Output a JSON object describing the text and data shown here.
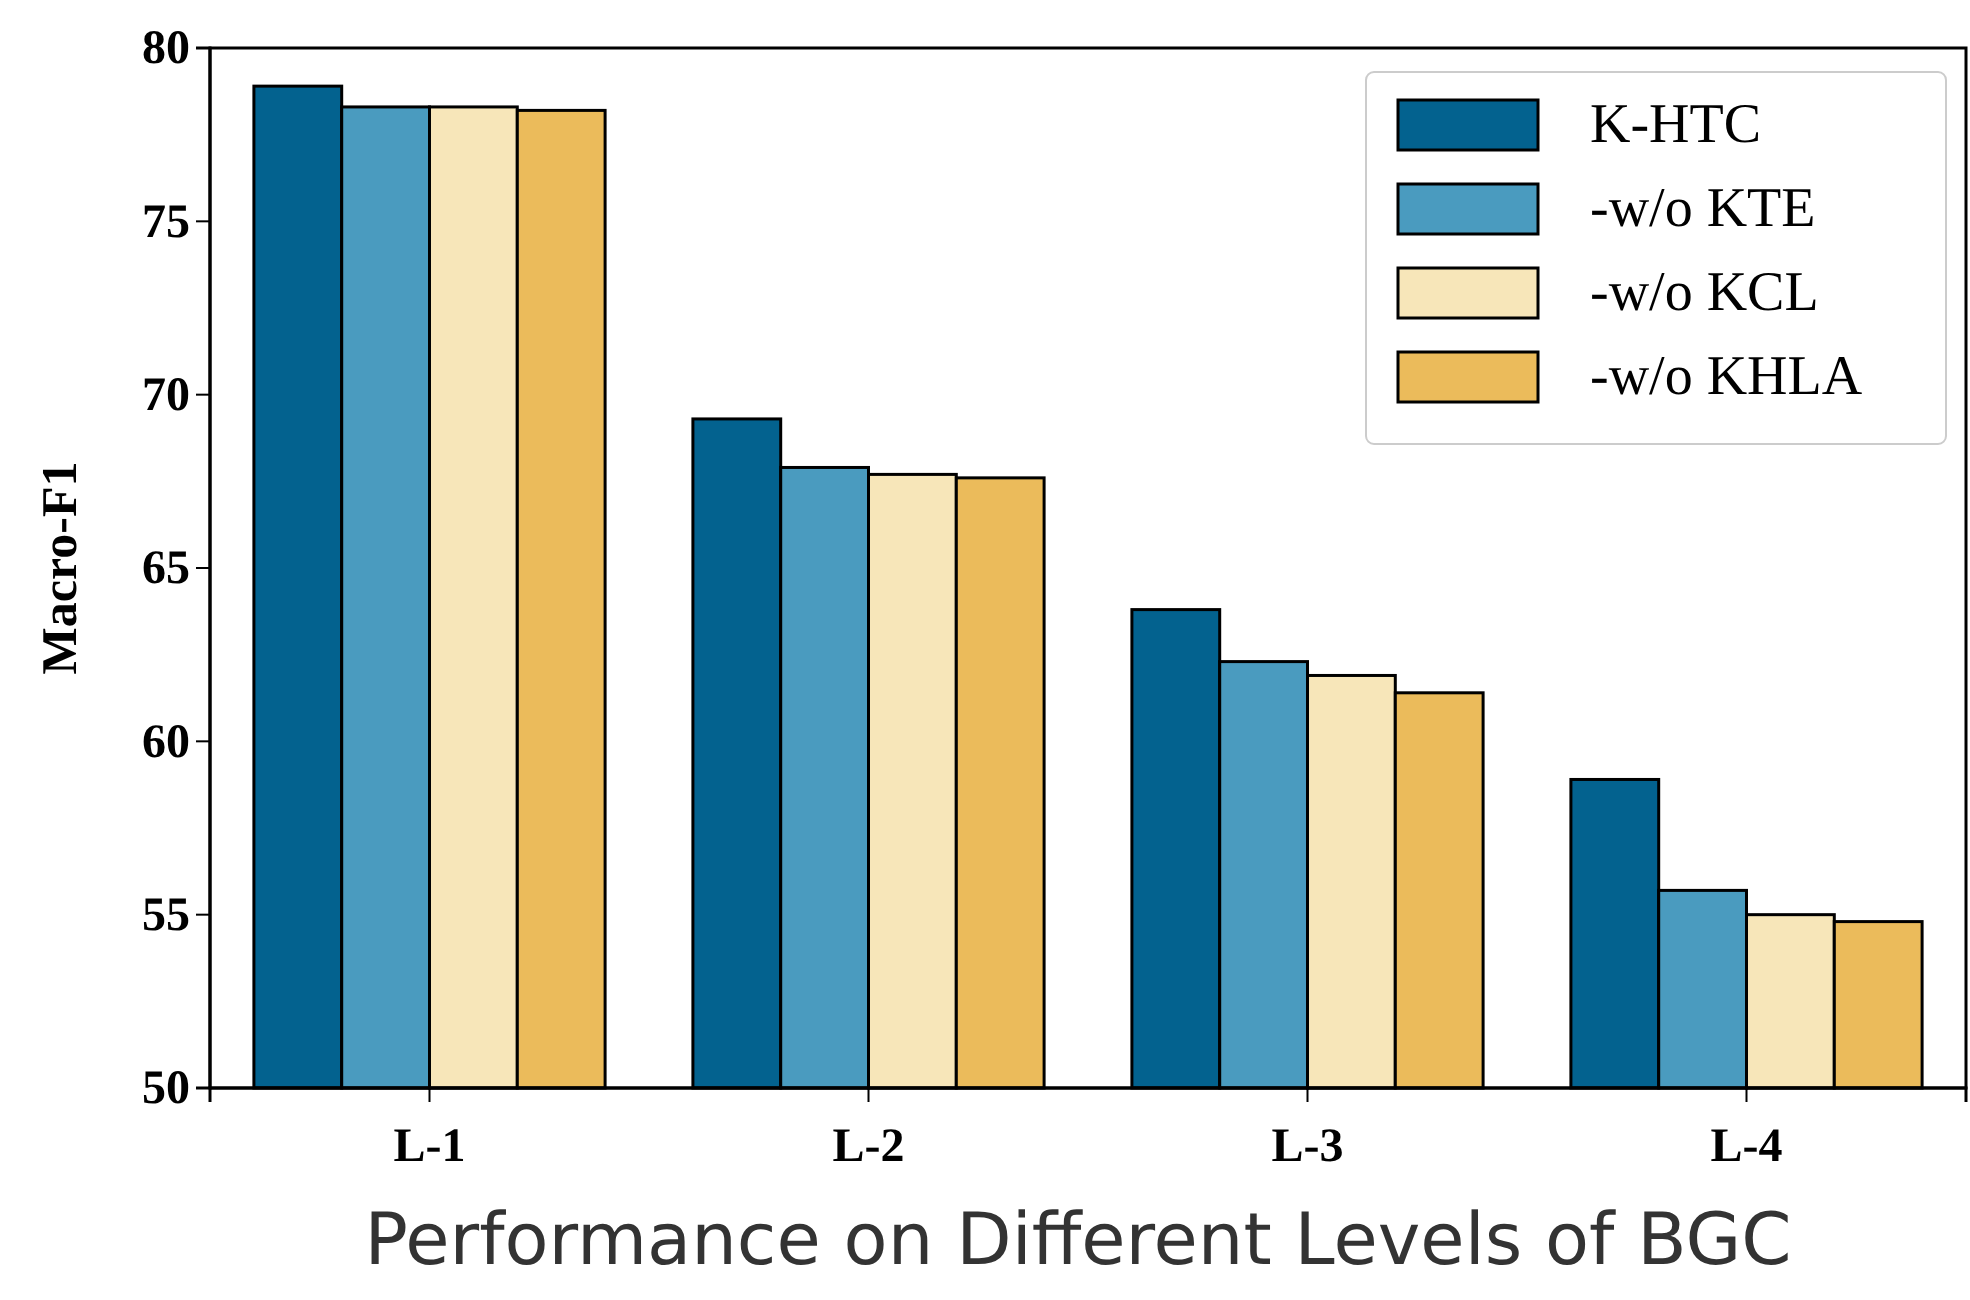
{
  "chart_data": {
    "type": "bar",
    "xlabel": "Performance on Different Levels of BGC",
    "ylabel": "Macro-F1",
    "categories": [
      "L-1",
      "L-2",
      "L-3",
      "L-4"
    ],
    "series": [
      {
        "name": "K-HTC",
        "color": "#03628f",
        "values": [
          78.9,
          69.3,
          63.8,
          58.9
        ]
      },
      {
        "name": "-w/o KTE",
        "color": "#4a9bbf",
        "values": [
          78.3,
          67.9,
          62.3,
          55.7
        ]
      },
      {
        "name": "-w/o KCL",
        "color": "#f7e6b9",
        "values": [
          78.3,
          67.7,
          61.9,
          55.0
        ]
      },
      {
        "name": "-w/o KHLA",
        "color": "#ebbb5b",
        "values": [
          78.2,
          67.6,
          61.4,
          54.8
        ]
      }
    ],
    "ylim": [
      50,
      80
    ],
    "yticks": [
      50,
      55,
      60,
      65,
      70,
      75,
      80
    ],
    "grid": false,
    "legend": "top right"
  }
}
